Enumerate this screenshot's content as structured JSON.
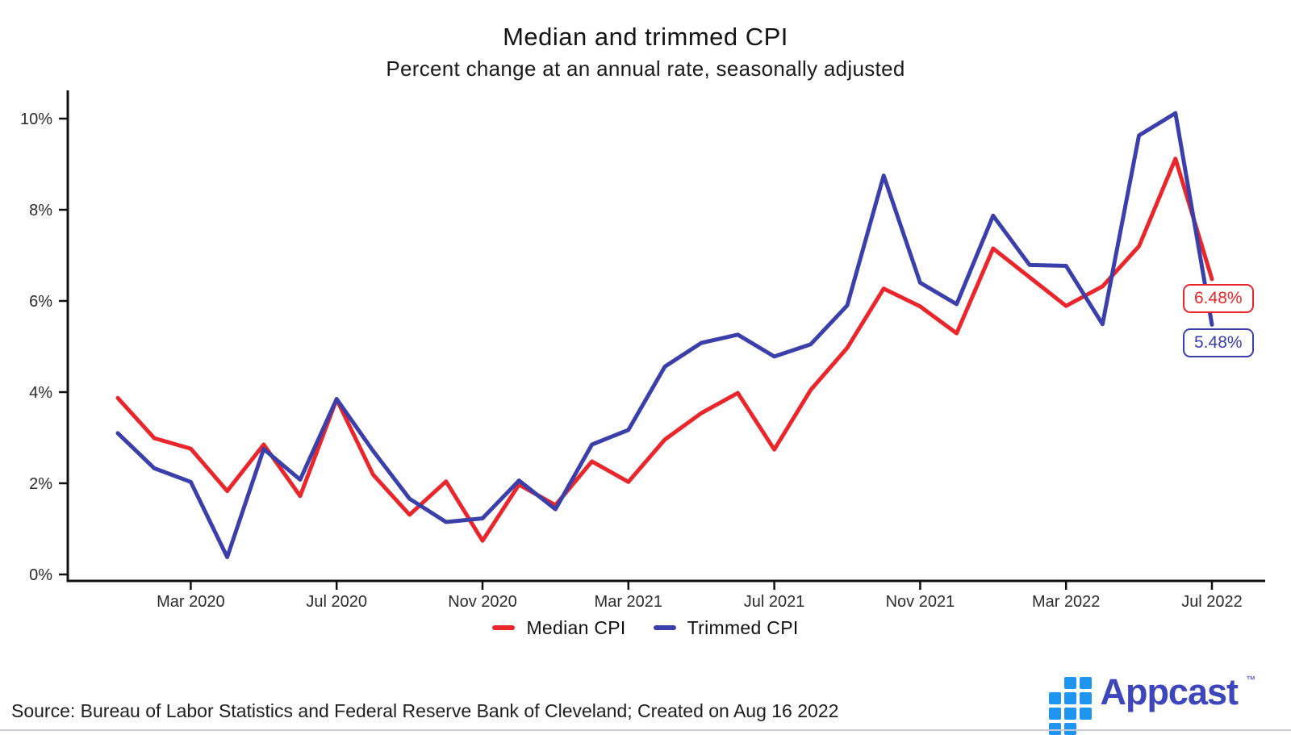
{
  "header": {
    "title": "Median and trimmed CPI",
    "subtitle": "Percent change at an annual rate, seasonally adjusted"
  },
  "chart_data": {
    "type": "line",
    "x": [
      "Jan 2020",
      "Feb 2020",
      "Mar 2020",
      "Apr 2020",
      "May 2020",
      "Jun 2020",
      "Jul 2020",
      "Aug 2020",
      "Sep 2020",
      "Oct 2020",
      "Nov 2020",
      "Dec 2020",
      "Jan 2021",
      "Feb 2021",
      "Mar 2021",
      "Apr 2021",
      "May 2021",
      "Jun 2021",
      "Jul 2021",
      "Aug 2021",
      "Sep 2021",
      "Oct 2021",
      "Nov 2021",
      "Dec 2021",
      "Jan 2022",
      "Feb 2022",
      "Mar 2022",
      "Apr 2022",
      "May 2022",
      "Jun 2022",
      "Jul 2022"
    ],
    "series": [
      {
        "name": "Median CPI",
        "color": "#e8262b",
        "values": [
          3.87,
          2.99,
          2.76,
          1.83,
          2.85,
          1.72,
          3.84,
          2.19,
          1.31,
          2.04,
          0.74,
          1.97,
          1.52,
          2.48,
          2.03,
          2.96,
          3.54,
          3.98,
          2.74,
          4.05,
          4.97,
          6.27,
          5.88,
          5.29,
          7.15,
          6.52,
          5.89,
          6.32,
          7.2,
          9.12,
          6.48
        ]
      },
      {
        "name": "Trimmed CPI",
        "color": "#3a3fa9",
        "values": [
          3.1,
          2.33,
          2.03,
          0.38,
          2.75,
          2.08,
          3.85,
          2.71,
          1.66,
          1.15,
          1.23,
          2.06,
          1.43,
          2.85,
          3.17,
          4.56,
          5.08,
          5.26,
          4.78,
          5.05,
          5.9,
          8.75,
          6.4,
          5.93,
          7.87,
          6.79,
          6.77,
          5.49,
          9.63,
          10.12,
          5.48
        ]
      }
    ],
    "x_ticks": [
      {
        "label": "Mar 2020",
        "index": 2
      },
      {
        "label": "Jul 2020",
        "index": 6
      },
      {
        "label": "Nov 2020",
        "index": 10
      },
      {
        "label": "Mar 2021",
        "index": 14
      },
      {
        "label": "Jul 2021",
        "index": 18
      },
      {
        "label": "Nov 2021",
        "index": 22
      },
      {
        "label": "Mar 2022",
        "index": 26
      },
      {
        "label": "Jul 2022",
        "index": 30
      }
    ],
    "y_ticks": [
      {
        "label": "0%",
        "value": 0
      },
      {
        "label": "2%",
        "value": 2
      },
      {
        "label": "4%",
        "value": 4
      },
      {
        "label": "6%",
        "value": 6
      },
      {
        "label": "8%",
        "value": 8
      },
      {
        "label": "10%",
        "value": 10
      }
    ],
    "ylim": [
      0,
      10.6
    ],
    "grid": false,
    "legend_position": "bottom",
    "end_labels": [
      {
        "text": "6.48%",
        "series": "Median CPI",
        "color": "#e8262b"
      },
      {
        "text": "5.48%",
        "series": "Trimmed CPI",
        "color": "#3a3fa9"
      }
    ],
    "axis_color": "#111111",
    "tick_label_color": "#2b2b2b"
  },
  "footer": {
    "source": "Source: Bureau of Labor Statistics and Federal Reserve Bank of Cleveland; Created on Aug 16 2022",
    "brand": "Appcast",
    "brand_tm": "™"
  }
}
